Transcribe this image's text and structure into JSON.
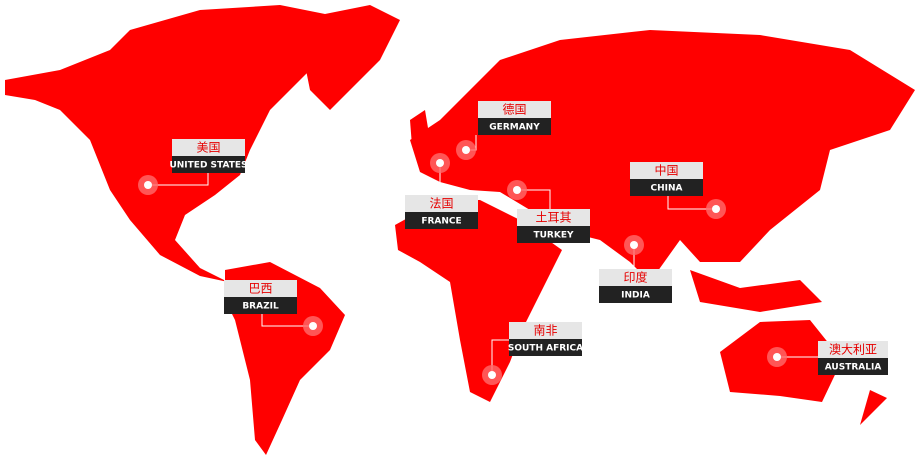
{
  "markers": [
    {
      "cn": "美国",
      "en": "UNITED STATES"
    },
    {
      "cn": "德国",
      "en": "GERMANY"
    },
    {
      "cn": "法国",
      "en": "FRANCE"
    },
    {
      "cn": "土耳其",
      "en": "TURKEY"
    },
    {
      "cn": "中国",
      "en": "CHINA"
    },
    {
      "cn": "印度",
      "en": "INDIA"
    },
    {
      "cn": "巴西",
      "en": "BRAZIL"
    },
    {
      "cn": "南非",
      "en": "SOUTH AFRICA"
    },
    {
      "cn": "澳大利亚",
      "en": "AUSTRALIA"
    }
  ]
}
